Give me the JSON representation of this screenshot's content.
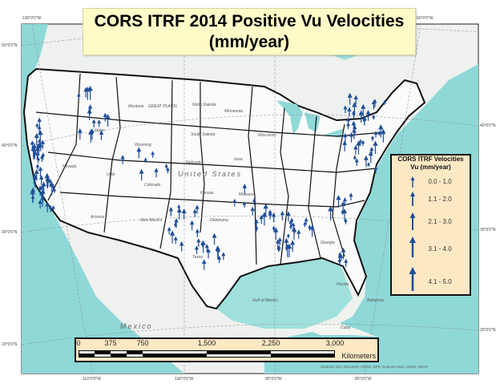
{
  "title": {
    "line1": "CORS ITRF 2014 Positive Vu Velocities",
    "line2": "(mm/year)"
  },
  "legend": {
    "title_line1": "CORS ITRF Velocities",
    "title_line2": "Vu (mm/year)",
    "classes": [
      {
        "label": "0.0 - 1.0"
      },
      {
        "label": "1.1 - 2.0"
      },
      {
        "label": "2.1 - 3.0"
      },
      {
        "label": "3.1 - 4.0"
      },
      {
        "label": "4.1 - 5.0"
      }
    ]
  },
  "scale_bar": {
    "ticks": [
      "0",
      "375",
      "750",
      "1,500",
      "2,250",
      "3,000"
    ],
    "unit": "Kilometers"
  },
  "graticule": {
    "left": [
      "50°0'0\"N",
      "40°0'0\"N",
      "30°0'0\"N",
      "20°0'0\"N"
    ],
    "right": [
      "40°0'0\"N",
      "30°0'0\"N",
      "20°0'0\"N"
    ],
    "top": [
      "130°0'0\"W",
      "60°0'0\"W"
    ],
    "bottom": [
      "110°0'0\"W",
      "100°0'0\"W",
      "90°0'0\"W",
      "80°0'0\"W"
    ]
  },
  "places": {
    "us": "United States",
    "mexico": "Mexico",
    "gulf": "Gulf of Mexico",
    "cuba": "Cuba",
    "bahamas": "Bahamas",
    "great_plains": "GREAT PLAINS",
    "north_dakota": "North Dakota",
    "south_dakota": "South Dakota",
    "nebraska": "Nebraska",
    "kansas": "Kansas",
    "iowa": "Iowa",
    "minnesota": "Minnesota",
    "wisconsin": "Wisconsin",
    "missouri": "Missouri",
    "montana": "Montana",
    "wyoming": "Wyoming",
    "idaho": "Idaho",
    "utah": "Utah",
    "colorado": "Colorado",
    "nevada": "Nevada",
    "arizona": "Arizona",
    "new_mexico": "New Mexico",
    "texas": "Texas",
    "oklahoma": "Oklahoma",
    "georgia": "Georgia",
    "florida": "Florida"
  },
  "source": "Sources: Esri, DeLorme, USGS, NPS; Sources: Esri, USGS, NOAA",
  "colors": {
    "arrow": "#1f4e9a",
    "ocean": "#8fd8d8",
    "legend_bg": "#fde8c4",
    "title_bg": "#fffbc8"
  }
}
